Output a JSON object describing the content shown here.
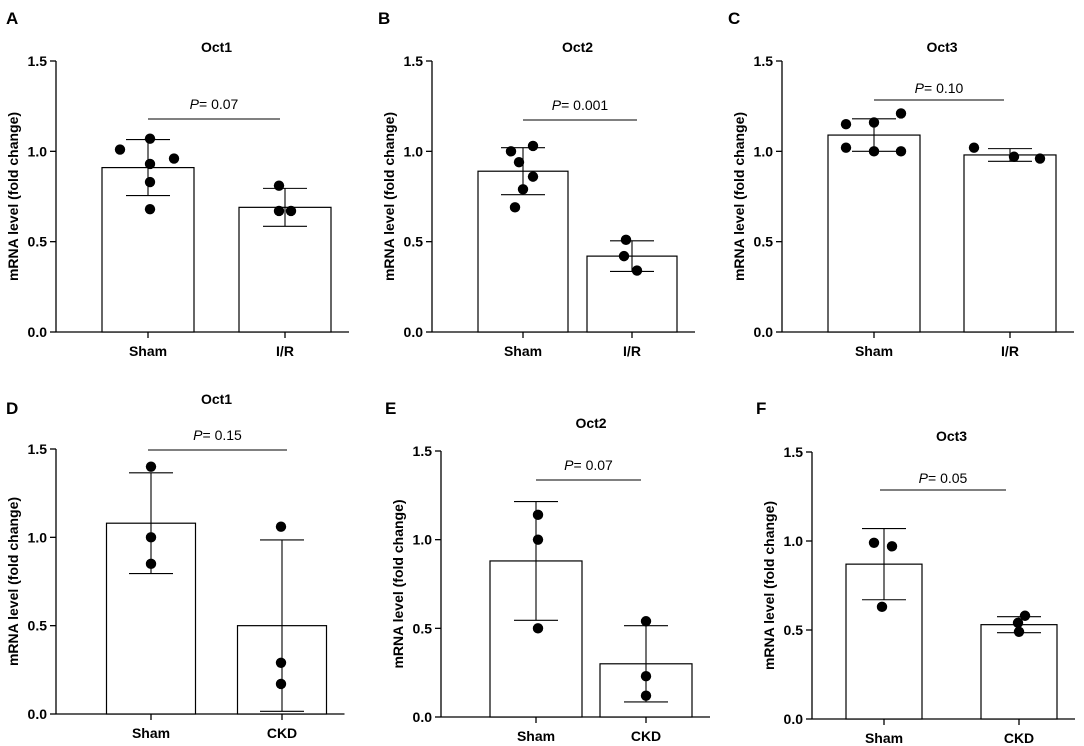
{
  "figure": {
    "width": 1084,
    "height": 746,
    "bar_fill": "#ffffff",
    "ink": "#000000"
  },
  "chart_data": [
    {
      "panel": "A",
      "type": "bar",
      "title": "Oct1",
      "ylabel": "mRNA level (fold change)",
      "ylim": [
        0,
        1.5
      ],
      "yticks": [
        "0.0",
        "0.5",
        "1.0",
        "1.5"
      ],
      "categories": [
        "Sham",
        "I/R"
      ],
      "values": [
        0.91,
        0.69
      ],
      "error_sd": [
        0.155,
        0.105
      ],
      "points": [
        [
          1.01,
          1.07,
          0.96,
          0.93,
          0.83,
          0.68
        ],
        [
          0.81,
          0.67,
          0.67
        ]
      ],
      "pvalue": {
        "p": "P",
        "text": "= 0.07"
      }
    },
    {
      "panel": "B",
      "type": "bar",
      "title": "Oct2",
      "ylabel": "mRNA level (fold change)",
      "ylim": [
        0,
        1.5
      ],
      "yticks": [
        "0.0",
        "0.5",
        "1.0",
        "1.5"
      ],
      "categories": [
        "Sham",
        "I/R"
      ],
      "values": [
        0.89,
        0.42
      ],
      "error_sd": [
        0.13,
        0.085
      ],
      "points": [
        [
          1.0,
          1.03,
          0.94,
          0.86,
          0.79,
          0.69
        ],
        [
          0.51,
          0.42,
          0.34
        ]
      ],
      "pvalue": {
        "p": "P",
        "text": "= 0.001"
      }
    },
    {
      "panel": "C",
      "type": "bar",
      "title": "Oct3",
      "ylabel": "mRNA level (fold change)",
      "ylim": [
        0,
        1.5
      ],
      "yticks": [
        "0.0",
        "0.5",
        "1.0",
        "1.5"
      ],
      "categories": [
        "Sham",
        "I/R"
      ],
      "values": [
        1.09,
        0.98
      ],
      "error_sd": [
        0.09,
        0.035
      ],
      "points": [
        [
          1.15,
          1.02,
          1.0,
          1.16,
          1.21,
          1.0
        ],
        [
          1.02,
          0.97,
          0.96
        ]
      ],
      "pvalue": {
        "p": "P",
        "text": "= 0.10"
      }
    },
    {
      "panel": "D",
      "type": "bar",
      "title": "Oct1",
      "ylabel": "mRNA level (fold change)",
      "ylim": [
        0,
        1.5
      ],
      "yticks": [
        "0.0",
        "0.5",
        "1.0",
        "1.5"
      ],
      "categories": [
        "Sham",
        "CKD"
      ],
      "values": [
        1.08,
        0.5
      ],
      "error_sd": [
        0.285,
        0.485
      ],
      "points": [
        [
          1.4,
          1.0,
          0.85
        ],
        [
          1.06,
          0.29,
          0.17
        ]
      ],
      "pvalue": {
        "p": "P",
        "text": "= 0.15"
      }
    },
    {
      "panel": "E",
      "type": "bar",
      "title": "Oct2",
      "ylabel": "mRNA level (fold change)",
      "ylim": [
        0,
        1.5
      ],
      "yticks": [
        "0.0",
        "0.5",
        "1.0",
        "1.5"
      ],
      "categories": [
        "Sham",
        "CKD"
      ],
      "values": [
        0.88,
        0.3
      ],
      "error_sd": [
        0.335,
        0.215
      ],
      "points": [
        [
          1.14,
          1.0,
          0.5
        ],
        [
          0.54,
          0.23,
          0.12
        ]
      ],
      "pvalue": {
        "p": "P",
        "text": "= 0.07"
      }
    },
    {
      "panel": "F",
      "type": "bar",
      "title": "Oct3",
      "ylabel": "mRNA level (fold change)",
      "ylim": [
        0,
        1.5
      ],
      "yticks": [
        "0.0",
        "0.5",
        "1.0",
        "1.5"
      ],
      "categories": [
        "Sham",
        "CKD"
      ],
      "values": [
        0.87,
        0.53
      ],
      "error_sd": [
        0.2,
        0.045
      ],
      "points": [
        [
          0.99,
          0.97,
          0.63
        ],
        [
          0.58,
          0.54,
          0.49
        ]
      ],
      "pvalue": {
        "p": "P",
        "text": "= 0.05"
      }
    }
  ]
}
